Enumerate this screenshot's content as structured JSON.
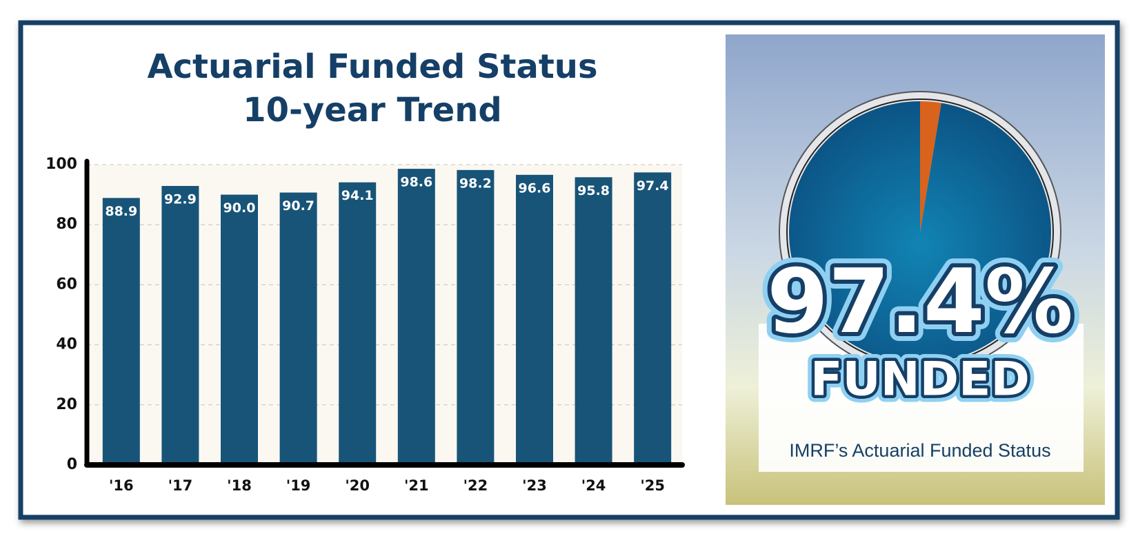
{
  "chart_data": [
    {
      "type": "bar",
      "title": "Actuarial Funded Status",
      "subtitle": "10-year Trend",
      "categories": [
        "'16",
        "'17",
        "'18",
        "'19",
        "'20",
        "'21",
        "'22",
        "'23",
        "'24",
        "'25"
      ],
      "values": [
        88.9,
        92.9,
        90.0,
        90.7,
        94.1,
        98.6,
        98.2,
        96.6,
        95.8,
        97.4
      ],
      "value_labels": [
        "88.9",
        "92.9",
        "90.0",
        "90.7",
        "94.1",
        "98.6",
        "98.2",
        "96.6",
        "95.8",
        "97.4"
      ],
      "color": "#185478",
      "ylim": [
        0,
        100
      ],
      "yticks": [
        0,
        20,
        40,
        60,
        80,
        100
      ],
      "grid": true
    },
    {
      "type": "gauge",
      "values": [
        97.4
      ],
      "value_labels": [
        "97.4%"
      ],
      "label": "FUNDED",
      "caption": "IMRF’s Actuarial Funded Status",
      "range": [
        0,
        100
      ],
      "color": "#0f6a9a",
      "remainder_color": "#d9621c"
    }
  ]
}
